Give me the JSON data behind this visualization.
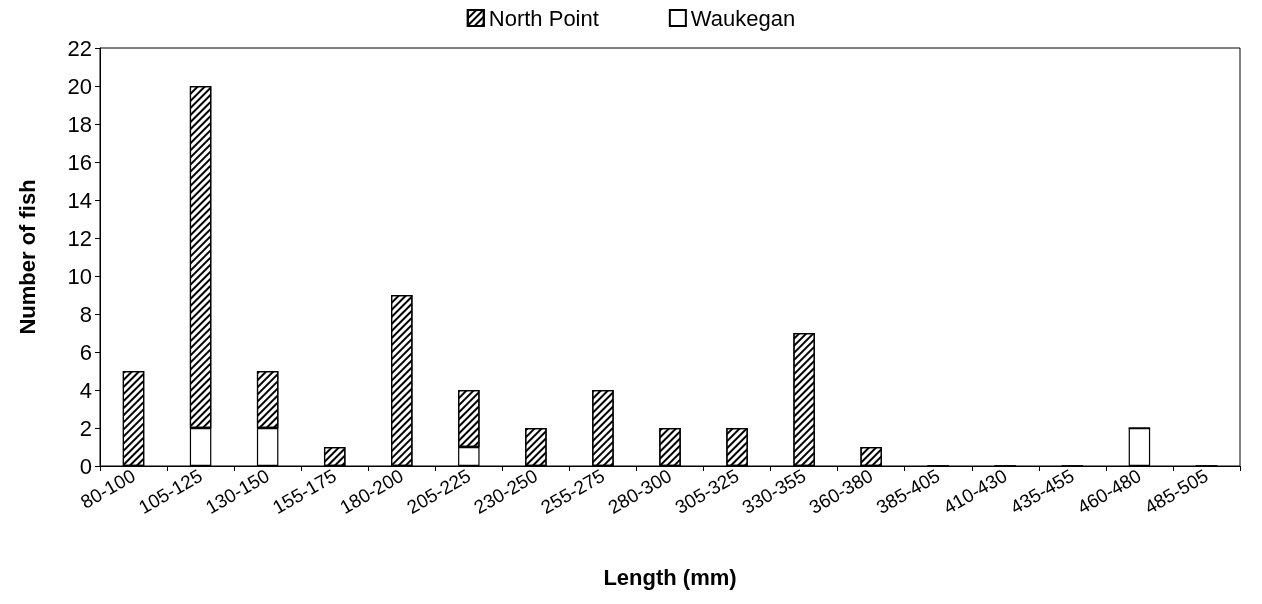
{
  "chart_data": {
    "type": "bar",
    "stacked": true,
    "xlabel": "Length (mm)",
    "ylabel": "Number of fish",
    "categories": [
      "80-100",
      "105-125",
      "130-150",
      "155-175",
      "180-200",
      "205-225",
      "230-250",
      "255-275",
      "280-300",
      "305-325",
      "330-355",
      "360-380",
      "385-405",
      "410-430",
      "435-455",
      "460-480",
      "485-505"
    ],
    "series": [
      {
        "name": "Waukegan",
        "color": "#ffffff",
        "values": [
          0,
          2,
          2,
          0,
          0,
          1,
          0,
          0,
          0,
          0,
          0,
          0,
          0,
          0,
          0,
          2,
          0
        ]
      },
      {
        "name": "North Point",
        "color": "#000000",
        "values": [
          5,
          18,
          3,
          1,
          9,
          3,
          2,
          4,
          2,
          2,
          7,
          1,
          0,
          0,
          0,
          0,
          0
        ]
      }
    ],
    "ylim": [
      0,
      22
    ],
    "yticks": [
      0,
      2,
      4,
      6,
      8,
      10,
      12,
      14,
      16,
      18,
      20,
      22
    ],
    "grid": false,
    "legend": "top"
  }
}
